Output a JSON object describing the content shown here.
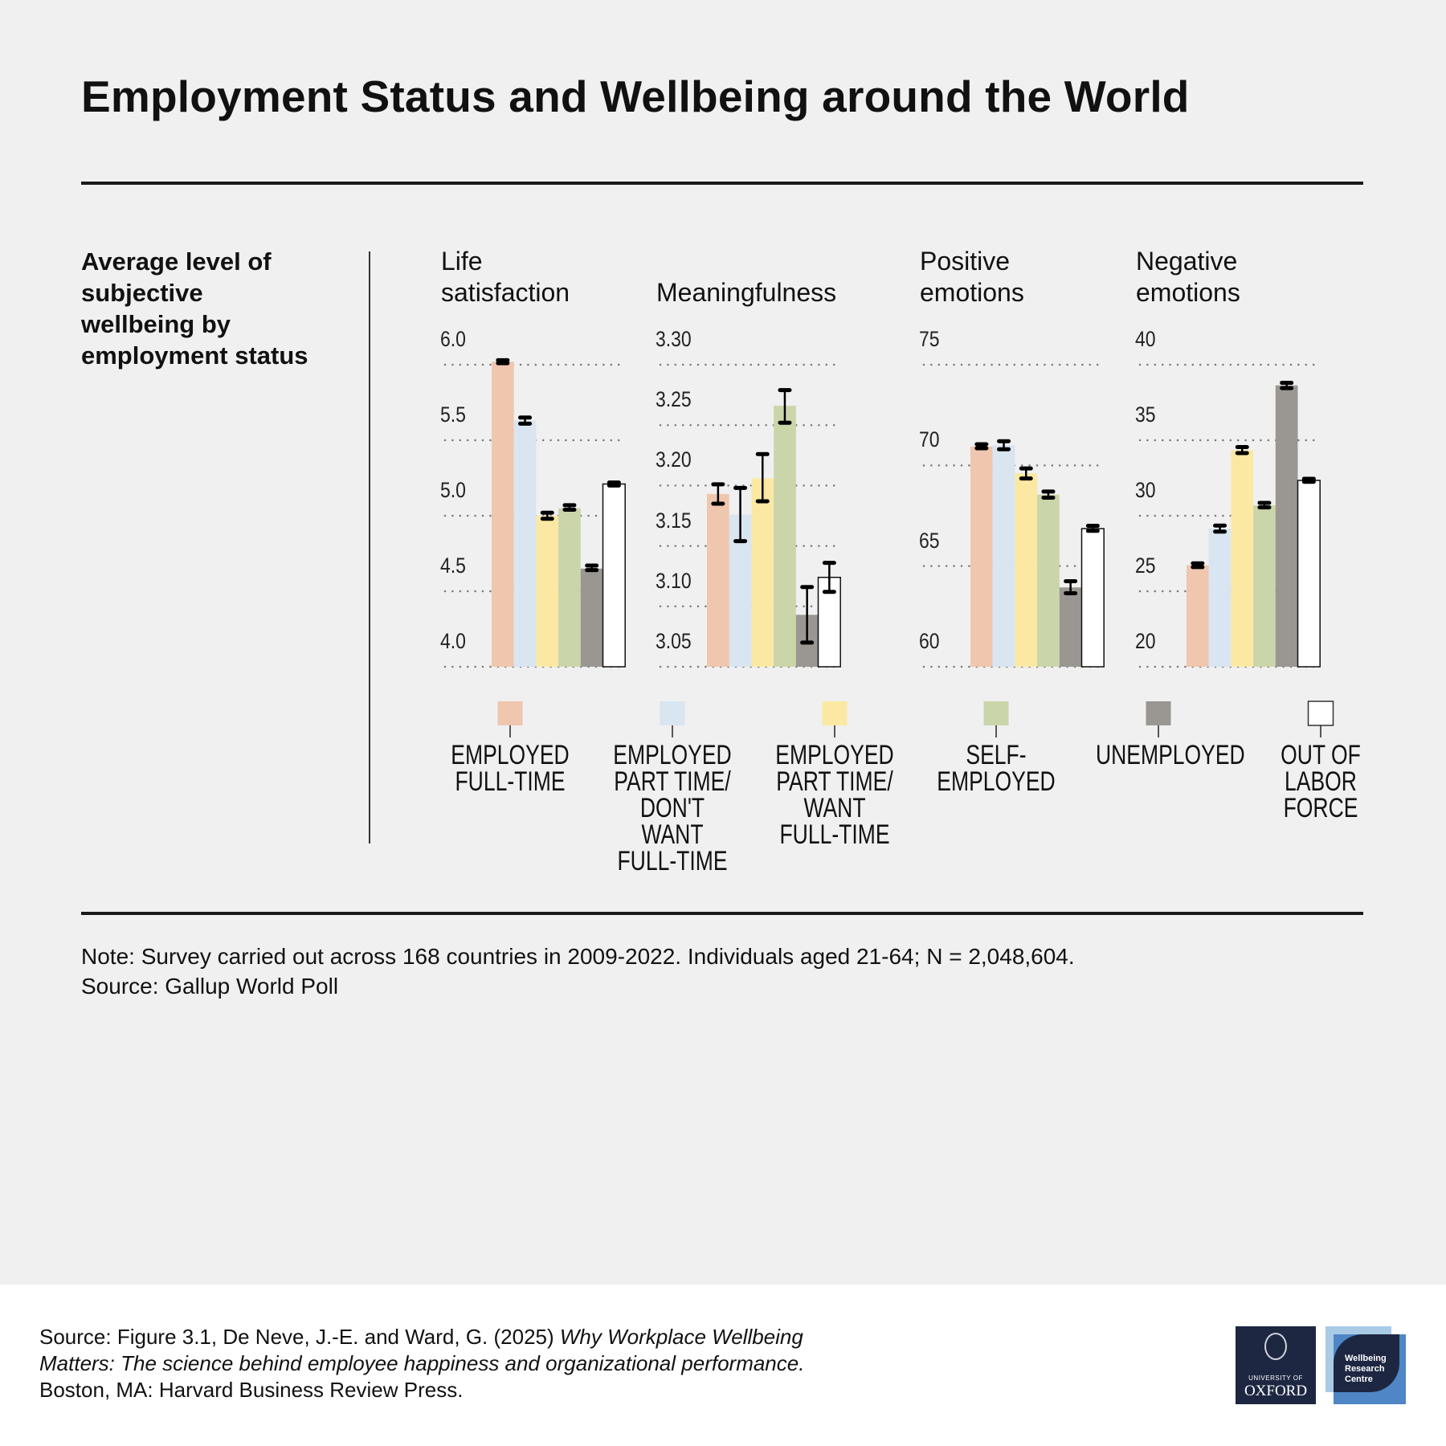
{
  "title": "Employment Status and Wellbeing around the World",
  "subtitle": "Average level of subjective wellbeing by employment status",
  "note": "Note: Survey carried out across 168 countries in 2009-2022. Individuals aged 21-64; N = 2,048,604.",
  "source": "Source: Gallup World Poll",
  "citation": {
    "prefix": "Source: Figure 3.1, De Neve, J.-E. and Ward, G. (2025) ",
    "italic": "Why Workplace Wellbeing Matters: The science behind employee happiness and organizational performance.",
    "suffix": " Boston, MA: Harvard Business Review Press."
  },
  "logos": {
    "oxford_line1": "UNIVERSITY OF",
    "oxford_line2": "OXFORD",
    "wrc": "Wellbeing Research Centre"
  },
  "legend": [
    {
      "label": "EMPLOYED\nFULL-TIME",
      "color": "#efc6ae"
    },
    {
      "label": "EMPLOYED\nPART TIME/\nDON'T WANT\nFULL-TIME",
      "color": "#d9e5f1"
    },
    {
      "label": "EMPLOYED\nPART TIME/\nWANT\nFULL-TIME",
      "color": "#fbe9a3"
    },
    {
      "label": "SELF-\nEMPLOYED",
      "color": "#cbd5aa"
    },
    {
      "label": "UNEMPLOYED",
      "color": "#9a9692"
    },
    {
      "label": "OUT OF\nLABOR\nFORCE",
      "color": "#ffffff"
    }
  ],
  "chart_data": [
    {
      "type": "bar",
      "title": "Life satisfaction",
      "ylim": [
        4.0,
        6.0
      ],
      "ticks": [
        "6.0",
        "5.5",
        "5.0",
        "4.5",
        "4.0"
      ],
      "tick_values": [
        6.0,
        5.5,
        5.0,
        4.5,
        4.0
      ],
      "categories": [
        "Employed full-time",
        "Employed part time/don't want full-time",
        "Employed part time/want full-time",
        "Self-employed",
        "Unemployed",
        "Out of labor force"
      ],
      "values": [
        6.02,
        5.63,
        5.0,
        5.05,
        4.65,
        5.21
      ],
      "err_low": [
        6.01,
        5.61,
        4.98,
        5.04,
        4.64,
        5.2
      ],
      "err_high": [
        6.03,
        5.65,
        5.02,
        5.07,
        4.67,
        5.22
      ]
    },
    {
      "type": "bar",
      "title": "Meaningfulness",
      "ylim": [
        3.05,
        3.3
      ],
      "ticks": [
        "3.30",
        "3.25",
        "3.20",
        "3.15",
        "3.10",
        "3.05"
      ],
      "tick_values": [
        3.3,
        3.25,
        3.2,
        3.15,
        3.1,
        3.05
      ],
      "categories": [
        "Employed full-time",
        "Employed part time/don't want full-time",
        "Employed part time/want full-time",
        "Self-employed",
        "Unemployed",
        "Out of labor force"
      ],
      "values": [
        3.193,
        3.176,
        3.206,
        3.266,
        3.093,
        3.124
      ],
      "err_low": [
        3.185,
        3.154,
        3.187,
        3.252,
        3.07,
        3.112
      ],
      "err_high": [
        3.201,
        3.198,
        3.226,
        3.279,
        3.116,
        3.136
      ]
    },
    {
      "type": "bar",
      "title": "Positive emotions",
      "ylim": [
        60,
        75
      ],
      "ticks": [
        "75",
        "70",
        "65",
        "60"
      ],
      "tick_values": [
        75,
        70,
        65,
        60
      ],
      "categories": [
        "Employed full-time",
        "Employed part time/don't want full-time",
        "Employed part time/want full-time",
        "Self-employed",
        "Unemployed",
        "Out of labor force"
      ],
      "values": [
        70.94,
        71.0,
        69.6,
        68.55,
        63.94,
        66.86
      ],
      "err_low": [
        70.85,
        70.8,
        69.35,
        68.4,
        63.65,
        66.75
      ],
      "err_high": [
        71.05,
        71.2,
        69.85,
        68.7,
        64.25,
        67.0
      ]
    },
    {
      "type": "bar",
      "title": "Negative emotions",
      "ylim": [
        20,
        40
      ],
      "ticks": [
        "40",
        "35",
        "30",
        "25",
        "20"
      ],
      "tick_values": [
        40,
        35,
        30,
        25,
        20
      ],
      "categories": [
        "Employed full-time",
        "Employed part time/don't want full-time",
        "Employed part time/want full-time",
        "Self-employed",
        "Unemployed",
        "Out of labor force"
      ],
      "values": [
        26.72,
        29.15,
        34.34,
        30.69,
        38.63,
        32.34
      ],
      "err_low": [
        26.6,
        28.95,
        34.15,
        30.55,
        38.45,
        32.25
      ],
      "err_high": [
        26.85,
        29.35,
        34.55,
        30.85,
        38.8,
        32.45
      ]
    }
  ],
  "panel_titles": [
    "Life\nsatisfaction",
    "\nMeaningfulness",
    "Positive\nemotions",
    "Negative\nemotions"
  ]
}
